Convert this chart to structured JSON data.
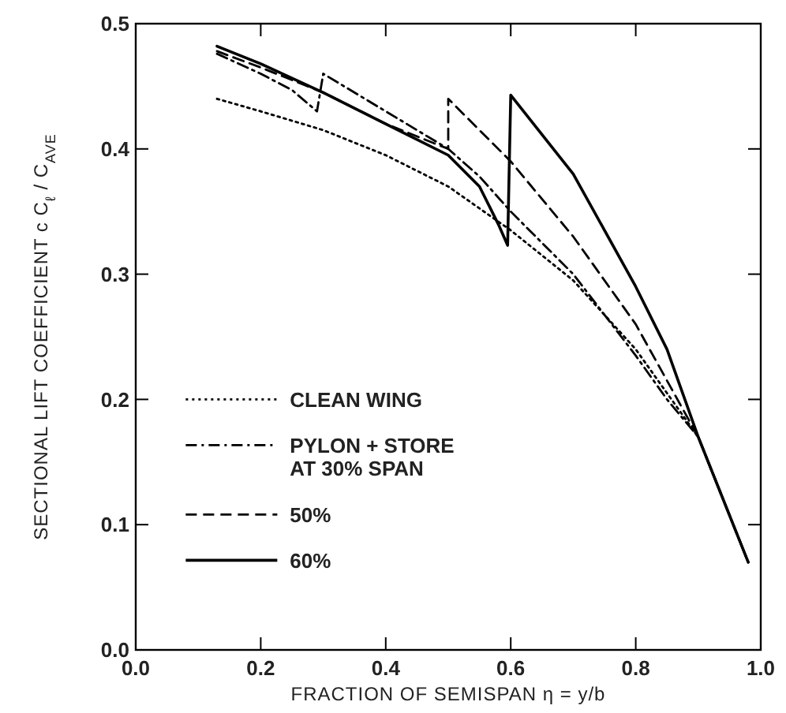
{
  "chart_data": {
    "type": "line",
    "xlabel": "FRACTION OF SEMISPAN η = y/b",
    "ylabel": "SECTIONAL LIFT COEFFICIENT   c C$_{ℓ}$ / C$_{AVE}$",
    "xlim": [
      0,
      1
    ],
    "ylim": [
      0,
      0.5
    ],
    "xticks": [
      {
        "value": 0,
        "label": "0.0"
      },
      {
        "value": 0.2,
        "label": "0.2"
      },
      {
        "value": 0.4,
        "label": "0.4"
      },
      {
        "value": 0.6,
        "label": "0.6"
      },
      {
        "value": 0.8,
        "label": "0.8"
      },
      {
        "value": 1,
        "label": "1.0"
      }
    ],
    "yticks": [
      {
        "value": 0,
        "label": "0.0"
      },
      {
        "value": 0.1,
        "label": "0.1"
      },
      {
        "value": 0.2,
        "label": "0.2"
      },
      {
        "value": 0.3,
        "label": "0.3"
      },
      {
        "value": 0.4,
        "label": "0.4"
      },
      {
        "value": 0.5,
        "label": "0.5"
      }
    ],
    "grid": false,
    "legend": "bottom left",
    "series": [
      {
        "name": "CLEAN WING",
        "color": "#000000",
        "line_style": "dotted",
        "x": [
          0.13,
          0.2,
          0.3,
          0.4,
          0.5,
          0.6,
          0.7,
          0.8,
          0.85,
          0.9,
          0.98
        ],
        "values": [
          0.44,
          0.43,
          0.415,
          0.395,
          0.37,
          0.335,
          0.295,
          0.24,
          0.205,
          0.17,
          0.07
        ]
      },
      {
        "name": "PYLON + STORE\nAT 30% SPAN",
        "color": "#000000",
        "line_style": "dashdot",
        "x": [
          0.13,
          0.2,
          0.25,
          0.29,
          0.3,
          0.4,
          0.5,
          0.55,
          0.6,
          0.7,
          0.8,
          0.85,
          0.9,
          0.98
        ],
        "values": [
          0.476,
          0.46,
          0.447,
          0.43,
          0.46,
          0.43,
          0.4,
          0.378,
          0.35,
          0.3,
          0.235,
          0.2,
          0.17,
          0.07
        ]
      },
      {
        "name": "50%",
        "color": "#000000",
        "line_style": "dashed",
        "x": [
          0.13,
          0.2,
          0.3,
          0.4,
          0.5,
          0.5,
          0.6,
          0.7,
          0.8,
          0.85,
          0.9,
          0.98
        ],
        "values": [
          0.478,
          0.465,
          0.445,
          0.42,
          0.4,
          0.44,
          0.39,
          0.33,
          0.26,
          0.215,
          0.17,
          0.07
        ]
      },
      {
        "name": "60%",
        "color": "#000000",
        "line_style": "solid",
        "x": [
          0.13,
          0.2,
          0.3,
          0.4,
          0.5,
          0.55,
          0.58,
          0.595,
          0.6,
          0.7,
          0.8,
          0.85,
          0.9,
          0.98
        ],
        "values": [
          0.482,
          0.468,
          0.445,
          0.42,
          0.395,
          0.37,
          0.34,
          0.323,
          0.443,
          0.38,
          0.29,
          0.24,
          0.17,
          0.07
        ]
      }
    ]
  }
}
